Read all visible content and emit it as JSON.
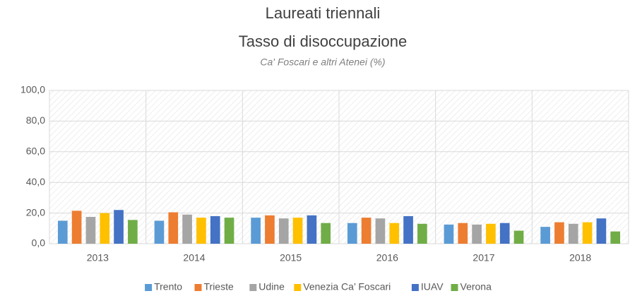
{
  "chart_data": {
    "type": "bar",
    "title": [
      "Laureati triennali",
      "Tasso di disoccupazione"
    ],
    "subtitle": "Ca' Foscari e altri Atenei (%)",
    "categories": [
      "2013",
      "2014",
      "2015",
      "2016",
      "2017",
      "2018"
    ],
    "series": [
      {
        "name": "Trento",
        "color": "#5b9bd5",
        "values": [
          15.0,
          15.0,
          17.0,
          13.5,
          12.5,
          11.0
        ]
      },
      {
        "name": "Trieste",
        "color": "#ed7d31",
        "values": [
          21.5,
          20.5,
          18.5,
          17.0,
          13.5,
          14.0
        ]
      },
      {
        "name": "Udine",
        "color": "#a5a5a5",
        "values": [
          17.5,
          19.0,
          16.5,
          16.5,
          12.5,
          13.0
        ]
      },
      {
        "name": "Venezia Ca’ Foscari",
        "color": "#ffc000",
        "values": [
          20.0,
          17.0,
          17.0,
          13.5,
          13.0,
          14.0
        ]
      },
      {
        "name": "IUAV",
        "color": "#4472c4",
        "values": [
          22.0,
          18.0,
          18.5,
          18.0,
          13.5,
          16.5
        ]
      },
      {
        "name": "Verona",
        "color": "#70ad47",
        "values": [
          15.5,
          17.0,
          13.5,
          13.0,
          8.5,
          8.0
        ]
      }
    ],
    "ylim": [
      0,
      100
    ],
    "yticks": [
      {
        "value": 0,
        "label": "0,0"
      },
      {
        "value": 20,
        "label": "20,0"
      },
      {
        "value": 40,
        "label": "40,0"
      },
      {
        "value": 60,
        "label": "60,0"
      },
      {
        "value": 80,
        "label": "80,0"
      },
      {
        "value": 100,
        "label": "100,0"
      }
    ],
    "grid": true,
    "legend": "bottom"
  }
}
